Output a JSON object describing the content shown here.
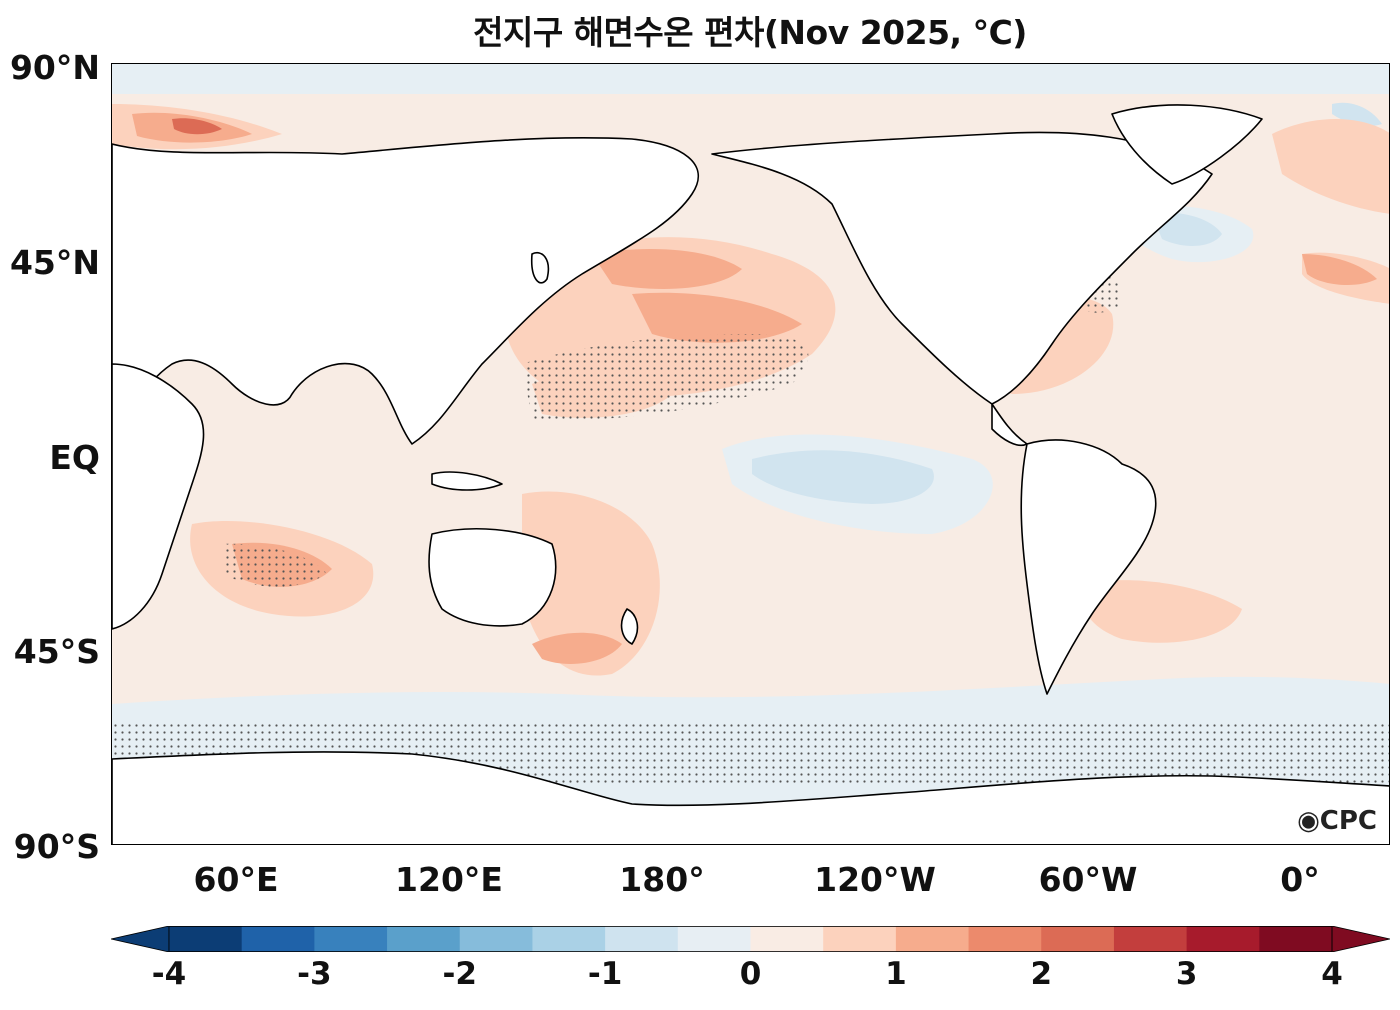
{
  "title": "전지구 해면수온 편차(Nov 2025, °C)",
  "lat_labels": [
    "90°N",
    "45°N",
    "EQ",
    "45°S",
    "90°S"
  ],
  "lon_labels": [
    "60°E",
    "120°E",
    "180°",
    "120°W",
    "60°W",
    "0°"
  ],
  "logo": "CPC",
  "colorbar": {
    "ticks": [
      "-4",
      "-3",
      "-2",
      "-1",
      "0",
      "1",
      "2",
      "3",
      "4"
    ],
    "colors": [
      "#0c3d75",
      "#1f62a9",
      "#3881bd",
      "#5aa0cb",
      "#86bcdb",
      "#aad1e6",
      "#cfe3ef",
      "#e7eef3",
      "#f9ece4",
      "#fcd2bd",
      "#f6ac8d",
      "#ec8a6c",
      "#dc6b55",
      "#c33e3d",
      "#a71b2c",
      "#7f0b21"
    ],
    "extend": "both"
  },
  "map_colors": {
    "land": "#ffffff",
    "coast": "#000000",
    "neutral_ocean": "#f8ece4",
    "cool_ocean": "#e6eff4"
  }
}
